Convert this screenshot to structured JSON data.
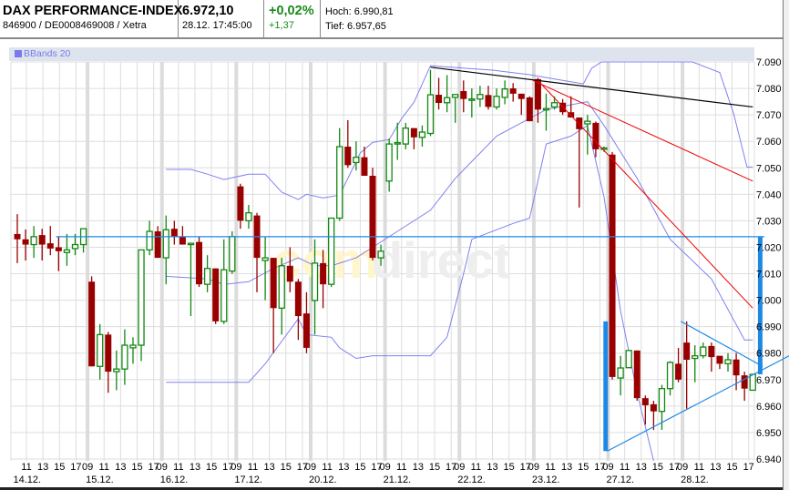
{
  "header": {
    "title": "DAX PERFORMANCE-INDEX",
    "subtitle": "846900 / DE0008469008 / Xetra",
    "price": "6.972,10",
    "datetime": "28.12. 17:45:00",
    "change_pct": "+0,02%",
    "change_abs": "+1,37",
    "high": "Hoch: 6.990,81",
    "low": "Tief: 6.957,65"
  },
  "legend": {
    "label": "BBands 20",
    "color": "#7a7aee"
  },
  "watermark": {
    "part1": "com",
    "part2": "direct"
  },
  "colors": {
    "up": "#118811",
    "down": "#990000",
    "band": "#8080f0",
    "trend_black": "#000000",
    "trend_red": "#ee0000",
    "drawing_blue": "#1e88e5",
    "grid": "#dddddd"
  },
  "chart_data": {
    "type": "candlestick",
    "ylim": [
      6940,
      7090
    ],
    "y_ticks": [
      "7.090",
      "7.080",
      "7.070",
      "7.060",
      "7.050",
      "7.040",
      "7.030",
      "7.020",
      "7.010",
      "7.000",
      "6.990",
      "6.980",
      "6.970",
      "6.960",
      "6.950",
      "6.940"
    ],
    "y_tick_values": [
      7090,
      7080,
      7070,
      7060,
      7050,
      7040,
      7030,
      7020,
      7010,
      7000,
      6990,
      6980,
      6970,
      6960,
      6950,
      6940
    ],
    "days": [
      "14.12.",
      "15.12.",
      "16.12.",
      "17.12.",
      "20.12.",
      "21.12.",
      "22.12.",
      "23.12.",
      "27.12.",
      "28.12."
    ],
    "hour_ticks_first_day": [
      "11",
      "13",
      "15",
      "17"
    ],
    "hour_ticks": [
      "09",
      "11",
      "13",
      "15",
      "17"
    ],
    "candles": [
      [
        7025,
        7032.5,
        7014,
        7023
      ],
      [
        7023,
        7026.7,
        7015,
        7021
      ],
      [
        7021,
        7028,
        7016,
        7024
      ],
      [
        7024.6,
        7027,
        7015,
        7021
      ],
      [
        7021.5,
        7028,
        7017,
        7019.5
      ],
      [
        7020,
        7024,
        7011,
        7018.5
      ],
      [
        7018,
        7025,
        7013,
        7019
      ],
      [
        7019.5,
        7025,
        7017,
        7021
      ],
      [
        7021,
        7027,
        7018,
        7027
      ],
      [
        7007,
        7009,
        6975,
        6975
      ],
      [
        6975,
        6991,
        6970,
        6987
      ],
      [
        6987,
        6988,
        6965,
        6973
      ],
      [
        6973,
        6981,
        6966,
        6974
      ],
      [
        6974,
        6989,
        6968,
        6983
      ],
      [
        6982,
        6986,
        6976,
        6983
      ],
      [
        6983,
        7019,
        6977,
        7019
      ],
      [
        7019,
        7030,
        7017,
        7026
      ],
      [
        7026,
        7028,
        7016,
        7016
      ],
      [
        7016,
        7032,
        7006,
        7026.6
      ],
      [
        7027,
        7030,
        7021,
        7024
      ],
      [
        7024,
        7028,
        7021,
        7021
      ],
      [
        7021,
        7021,
        6994,
        7021.5
      ],
      [
        7022,
        7024,
        7005,
        7006
      ],
      [
        7006,
        7017,
        7003,
        7012
      ],
      [
        7012,
        7012,
        6991,
        6992
      ],
      [
        6992,
        7023,
        6991,
        7011.5
      ],
      [
        7011,
        7026,
        7010,
        7024
      ],
      [
        7043,
        7044,
        7027,
        7030
      ],
      [
        7030,
        7036,
        7027,
        7033
      ],
      [
        7032,
        7033,
        7003,
        7016
      ],
      [
        7015,
        7024,
        7000,
        7016
      ],
      [
        7016,
        7016,
        6980,
        6997
      ],
      [
        6997,
        7016,
        6987,
        7013
      ],
      [
        7013,
        7020,
        7003,
        7007
      ],
      [
        7007,
        7008,
        6985,
        6994
      ],
      [
        6995,
        7003,
        6980,
        6982
      ],
      [
        6999.9,
        7023,
        6987,
        7014
      ],
      [
        7014,
        7019,
        6997,
        7006
      ],
      [
        7006,
        7031,
        7005,
        7031
      ],
      [
        7031,
        7065,
        7030,
        7058
      ],
      [
        7058,
        7068,
        7050,
        7051
      ],
      [
        7052,
        7060,
        7049,
        7054
      ],
      [
        7054,
        7058,
        7047,
        7047
      ],
      [
        7047,
        7050,
        7015,
        7016
      ],
      [
        7016,
        7021,
        7013,
        7018.5
      ],
      [
        7045,
        7061,
        7041,
        7059
      ],
      [
        7059,
        7067,
        7053,
        7059.5
      ],
      [
        7059,
        7067,
        7057,
        7065
      ],
      [
        7065,
        7065,
        7057,
        7061.5
      ],
      [
        7061.5,
        7066,
        7058,
        7063.5
      ],
      [
        7063,
        7087,
        7062,
        7077.6
      ],
      [
        7077.6,
        7084,
        7072,
        7074.5
      ],
      [
        7074.6,
        7085,
        7071,
        7076.5
      ],
      [
        7076.6,
        7077.7,
        7067,
        7077.7
      ],
      [
        7079,
        7083,
        7071,
        7076
      ],
      [
        7076,
        7080,
        7069,
        7076
      ],
      [
        7076,
        7081,
        7073,
        7077.7
      ],
      [
        7077.5,
        7081,
        7072,
        7073
      ],
      [
        7073,
        7080,
        7072,
        7077
      ],
      [
        7076.6,
        7083,
        7074,
        7079.8
      ],
      [
        7080,
        7082,
        7075,
        7078
      ],
      [
        7078,
        7078,
        7070,
        7076
      ],
      [
        7076.6,
        7077,
        7067.6,
        7067.6
      ],
      [
        7083.5,
        7084,
        7067,
        7072
      ],
      [
        7072,
        7078,
        7064,
        7072.4
      ],
      [
        7073,
        7077,
        7072,
        7074.6
      ],
      [
        7074.6,
        7076,
        7070,
        7071
      ],
      [
        7071,
        7077,
        7069,
        7069
      ],
      [
        7069,
        7069,
        7035,
        7064.6
      ],
      [
        7066.6,
        7070,
        7055,
        7067.6
      ],
      [
        7067,
        7067.5,
        7054,
        7057
      ],
      [
        7057,
        7058,
        7056,
        7057.5
      ],
      [
        7055,
        7056,
        6970,
        6971
      ],
      [
        6970.6,
        6979,
        6964,
        6974.4
      ],
      [
        6974.5,
        6981,
        6975,
        6981
      ],
      [
        6981,
        6981,
        6962,
        6963
      ],
      [
        6963,
        6964,
        6953,
        6960.3
      ],
      [
        6960.7,
        6962,
        6951,
        6958
      ],
      [
        6958,
        6968,
        6951,
        6966.6
      ],
      [
        6966.6,
        6977,
        6964,
        6976.5
      ],
      [
        6976,
        6982,
        6969,
        6970
      ],
      [
        6984,
        6992,
        6959,
        6977.5
      ],
      [
        6978,
        6983,
        6969,
        6979
      ],
      [
        6979,
        6984,
        6978,
        6982.3
      ],
      [
        6982.7,
        6984,
        6973,
        6978.5
      ],
      [
        6979,
        6979,
        6974,
        6976
      ],
      [
        6976,
        6980,
        6973,
        6977.5
      ],
      [
        6977.6,
        6980,
        6966,
        6971.6
      ],
      [
        6971.6,
        6973,
        6962,
        6966.6
      ],
      [
        6966,
        6972,
        6966,
        6972
      ]
    ],
    "bbands": {
      "name": "BBands 20",
      "upper": [
        [
          18,
          7049.4
        ],
        [
          21,
          7049.4
        ],
        [
          23,
          7047.6
        ],
        [
          25,
          7045.6
        ],
        [
          28,
          7047.6
        ],
        [
          30,
          7047.6
        ],
        [
          32,
          7040.8
        ],
        [
          34,
          7038
        ],
        [
          35,
          7040
        ],
        [
          37,
          7038.6
        ],
        [
          39,
          7039.7
        ],
        [
          40,
          7046
        ],
        [
          41.5,
          7055.6
        ],
        [
          43,
          7059.6
        ],
        [
          45,
          7060.7
        ],
        [
          46.5,
          7068.6
        ],
        [
          48,
          7074.8
        ],
        [
          50,
          7088.6
        ],
        [
          53,
          7087.9
        ],
        [
          57.5,
          7086.9
        ],
        [
          62,
          7085.2
        ],
        [
          66,
          7083
        ],
        [
          68.5,
          7081.7
        ],
        [
          69.5,
          7087.6
        ],
        [
          70.7,
          7090
        ],
        [
          75,
          7090
        ],
        [
          81.7,
          7090
        ],
        [
          85,
          7086
        ],
        [
          86.7,
          7070.3
        ],
        [
          88.3,
          7050.3
        ],
        [
          89,
          7050.3
        ]
      ],
      "middle": [
        [
          18,
          7009
        ],
        [
          23,
          7008
        ],
        [
          25,
          7006
        ],
        [
          28,
          7007
        ],
        [
          31,
          7012
        ],
        [
          34,
          7016
        ],
        [
          36,
          7013
        ],
        [
          38,
          7013
        ],
        [
          41,
          7016
        ],
        [
          43,
          7020
        ],
        [
          46,
          7026
        ],
        [
          50,
          7034
        ],
        [
          53,
          7046
        ],
        [
          58,
          7062
        ],
        [
          64,
          7072
        ],
        [
          69,
          7075
        ],
        [
          71,
          7066
        ],
        [
          75,
          7046
        ],
        [
          79,
          7023
        ],
        [
          84,
          7008
        ],
        [
          88,
          6985
        ],
        [
          89,
          6985
        ]
      ],
      "lower": [
        [
          18,
          6969
        ],
        [
          23,
          6969
        ],
        [
          28,
          6969
        ],
        [
          30,
          6976
        ],
        [
          34,
          6993
        ],
        [
          35,
          6987
        ],
        [
          38,
          6986
        ],
        [
          39,
          6982
        ],
        [
          41,
          6978
        ],
        [
          43,
          6979
        ],
        [
          46,
          6979
        ],
        [
          50,
          6979
        ],
        [
          52,
          6986
        ],
        [
          54,
          7010
        ],
        [
          55,
          7023
        ],
        [
          60,
          7029
        ],
        [
          62,
          7031
        ],
        [
          62.5,
          7038
        ],
        [
          64,
          7059
        ],
        [
          67,
          7062
        ],
        [
          69,
          7066
        ],
        [
          71,
          7039
        ],
        [
          73,
          6996
        ],
        [
          75,
          6965
        ],
        [
          77,
          6939
        ]
      ]
    },
    "drawings": {
      "horizontal_line": {
        "value": 7024,
        "from": 4.7,
        "to": 90.4
      },
      "trend_black": [
        [
          50,
          7088
        ],
        [
          89,
          7073
        ]
      ],
      "trend_red_1": [
        [
          62.4,
          7083
        ],
        [
          89,
          7045
        ]
      ],
      "trend_red_2": [
        [
          63,
          7083
        ],
        [
          89,
          6997
        ]
      ],
      "triangle_upper": [
        [
          80.3,
          6992
        ],
        [
          90.2,
          6975
        ]
      ],
      "triangle_lower": [
        [
          71.4,
          6943
        ],
        [
          93.4,
          6979
        ]
      ],
      "vertical_bars": [
        {
          "at": 71.2,
          "from": 6992,
          "to": 6943
        },
        {
          "at": 89.9,
          "from": 7024,
          "to": 6972
        }
      ]
    }
  }
}
